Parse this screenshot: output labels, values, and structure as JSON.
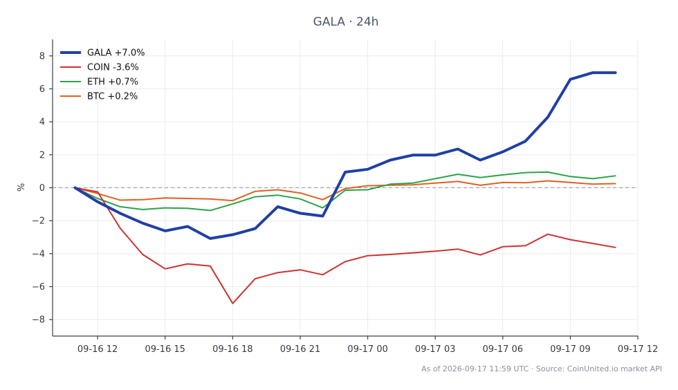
{
  "chart_data": {
    "type": "line",
    "title": "GALA · 24h",
    "xlabel": "",
    "ylabel": "%",
    "ylim": [
      -9,
      9
    ],
    "yticks": [
      -8,
      -6,
      -4,
      -2,
      0,
      2,
      4,
      6,
      8
    ],
    "ytick_labels": [
      "−8",
      "−6",
      "−4",
      "−2",
      "0",
      "2",
      "4",
      "6",
      "8"
    ],
    "xlim": [
      "2026-09-16 10:00",
      "2026-09-17 12:00"
    ],
    "xticks": [
      "2026-09-16 12:00",
      "2026-09-16 15:00",
      "2026-09-16 18:00",
      "2026-09-16 21:00",
      "2026-09-17 00:00",
      "2026-09-17 03:00",
      "2026-09-17 06:00",
      "2026-09-17 09:00",
      "2026-09-17 12:00"
    ],
    "xtick_labels": [
      "09-16 12",
      "09-16 15",
      "09-16 18",
      "09-16 21",
      "09-17 00",
      "09-17 03",
      "09-17 06",
      "09-17 09",
      "09-17 12"
    ],
    "x": [
      "2026-09-16 11:00",
      "2026-09-16 12:00",
      "2026-09-16 13:00",
      "2026-09-16 14:00",
      "2026-09-16 15:00",
      "2026-09-16 16:00",
      "2026-09-16 17:00",
      "2026-09-16 18:00",
      "2026-09-16 19:00",
      "2026-09-16 20:00",
      "2026-09-16 21:00",
      "2026-09-16 22:00",
      "2026-09-16 23:00",
      "2026-09-17 00:00",
      "2026-09-17 01:00",
      "2026-09-17 02:00",
      "2026-09-17 03:00",
      "2026-09-17 04:00",
      "2026-09-17 05:00",
      "2026-09-17 06:00",
      "2026-09-17 07:00",
      "2026-09-17 08:00",
      "2026-09-17 09:00",
      "2026-09-17 10:00",
      "2026-09-17 11:00"
    ],
    "grid": true,
    "zero_line": true,
    "legend_position": "top-left",
    "series": [
      {
        "name": "GALA +7.0%",
        "color": "#1f3fa8",
        "width": 4,
        "values": [
          0.0,
          -0.85,
          -1.55,
          -2.15,
          -2.62,
          -2.35,
          -3.08,
          -2.85,
          -2.48,
          -1.15,
          -1.55,
          -1.72,
          0.95,
          1.12,
          1.68,
          1.98,
          1.98,
          2.35,
          1.68,
          2.18,
          2.82,
          4.28,
          6.58,
          6.98,
          6.98
        ]
      },
      {
        "name": "COIN -3.6%",
        "color": "#d03030",
        "width": 2,
        "values": [
          0.0,
          -0.25,
          -2.45,
          -4.05,
          -4.92,
          -4.62,
          -4.75,
          -7.02,
          -5.52,
          -5.15,
          -4.98,
          -5.28,
          -4.48,
          -4.12,
          -4.05,
          -3.95,
          -3.85,
          -3.72,
          -4.08,
          -3.58,
          -3.52,
          -2.82,
          -3.15,
          -3.38,
          -3.62
        ]
      },
      {
        "name": "ETH +0.7%",
        "color": "#2aa34a",
        "width": 2,
        "values": [
          0.0,
          -0.65,
          -1.15,
          -1.32,
          -1.22,
          -1.25,
          -1.38,
          -0.98,
          -0.55,
          -0.45,
          -0.68,
          -1.22,
          -0.15,
          -0.12,
          0.22,
          0.28,
          0.55,
          0.82,
          0.62,
          0.78,
          0.92,
          0.95,
          0.68,
          0.55,
          0.72
        ]
      },
      {
        "name": "BTC +0.2%",
        "color": "#e06020",
        "width": 2,
        "values": [
          0.0,
          -0.35,
          -0.75,
          -0.72,
          -0.62,
          -0.65,
          -0.68,
          -0.78,
          -0.22,
          -0.12,
          -0.32,
          -0.72,
          -0.05,
          0.12,
          0.15,
          0.18,
          0.28,
          0.38,
          0.15,
          0.32,
          0.3,
          0.42,
          0.32,
          0.22,
          0.25
        ]
      }
    ]
  },
  "footnote": "As of 2026-09-17 11:59 UTC · Source: CoinUnited.io market API"
}
